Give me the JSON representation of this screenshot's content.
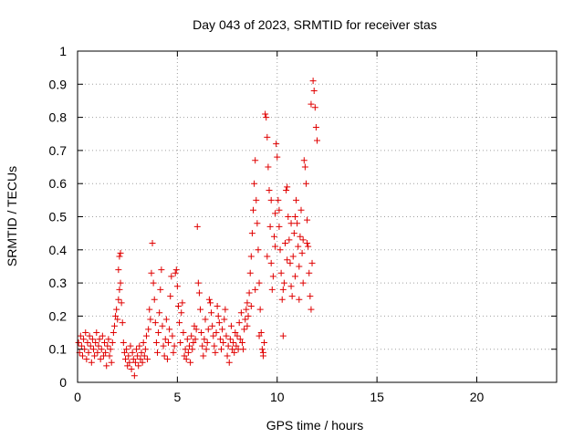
{
  "chart_data": {
    "type": "scatter",
    "title": "Day 043 of 2023, SRMTID for receiver stas",
    "xlabel": "GPS time / hours",
    "ylabel": "SRMTID / TECUs",
    "xlim": [
      0,
      24
    ],
    "ylim": [
      0,
      1
    ],
    "xticks": [
      0,
      5,
      10,
      15,
      20
    ],
    "xtick_labels": [
      "0",
      "5",
      "10",
      "15",
      "20"
    ],
    "yticks": [
      0,
      0.1,
      0.2,
      0.3,
      0.4,
      0.5,
      0.6,
      0.7,
      0.8,
      0.9,
      1
    ],
    "ytick_labels": [
      "0",
      "0.1",
      "0.2",
      "0.3",
      "0.4",
      "0.5",
      "0.6",
      "0.7",
      "0.8",
      "0.9",
      "1"
    ],
    "grid": true,
    "marker": "+",
    "series": [
      {
        "name": "stas",
        "color": "#e00000",
        "points": [
          [
            0.05,
            0.12
          ],
          [
            0.1,
            0.09
          ],
          [
            0.15,
            0.14
          ],
          [
            0.2,
            0.11
          ],
          [
            0.25,
            0.08
          ],
          [
            0.3,
            0.13
          ],
          [
            0.35,
            0.1
          ],
          [
            0.4,
            0.15
          ],
          [
            0.45,
            0.07
          ],
          [
            0.5,
            0.12
          ],
          [
            0.55,
            0.09
          ],
          [
            0.6,
            0.14
          ],
          [
            0.65,
            0.11
          ],
          [
            0.7,
            0.06
          ],
          [
            0.75,
            0.13
          ],
          [
            0.8,
            0.1
          ],
          [
            0.85,
            0.08
          ],
          [
            0.9,
            0.12
          ],
          [
            0.95,
            0.15
          ],
          [
            1.0,
            0.09
          ],
          [
            1.05,
            0.11
          ],
          [
            1.1,
            0.13
          ],
          [
            1.15,
            0.07
          ],
          [
            1.2,
            0.1
          ],
          [
            1.25,
            0.14
          ],
          [
            1.3,
            0.08
          ],
          [
            1.35,
            0.12
          ],
          [
            1.4,
            0.09
          ],
          [
            1.45,
            0.05
          ],
          [
            1.5,
            0.11
          ],
          [
            1.55,
            0.13
          ],
          [
            1.6,
            0.08
          ],
          [
            1.65,
            0.1
          ],
          [
            1.7,
            0.06
          ],
          [
            1.75,
            0.12
          ],
          [
            1.8,
            0.15
          ],
          [
            1.85,
            0.17
          ],
          [
            1.9,
            0.2
          ],
          [
            1.95,
            0.22
          ],
          [
            2.0,
            0.19
          ],
          [
            2.05,
            0.25
          ],
          [
            2.1,
            0.28
          ],
          [
            2.15,
            0.3
          ],
          [
            2.2,
            0.24
          ],
          [
            2.25,
            0.18
          ],
          [
            2.1,
            0.38
          ],
          [
            2.15,
            0.39
          ],
          [
            2.05,
            0.34
          ],
          [
            2.3,
            0.12
          ],
          [
            2.35,
            0.09
          ],
          [
            2.4,
            0.07
          ],
          [
            2.45,
            0.1
          ],
          [
            2.5,
            0.05
          ],
          [
            2.55,
            0.08
          ],
          [
            2.6,
            0.06
          ],
          [
            2.65,
            0.11
          ],
          [
            2.7,
            0.04
          ],
          [
            2.75,
            0.09
          ],
          [
            2.8,
            0.07
          ],
          [
            2.85,
            0.02
          ],
          [
            2.9,
            0.06
          ],
          [
            2.95,
            0.1
          ],
          [
            3.0,
            0.08
          ],
          [
            3.05,
            0.05
          ],
          [
            3.1,
            0.11
          ],
          [
            3.15,
            0.07
          ],
          [
            3.2,
            0.09
          ],
          [
            3.25,
            0.06
          ],
          [
            3.3,
            0.12
          ],
          [
            3.35,
            0.08
          ],
          [
            3.4,
            0.1
          ],
          [
            3.45,
            0.14
          ],
          [
            3.5,
            0.07
          ],
          [
            3.55,
            0.16
          ],
          [
            3.6,
            0.22
          ],
          [
            3.65,
            0.19
          ],
          [
            3.7,
            0.33
          ],
          [
            3.75,
            0.42
          ],
          [
            3.8,
            0.3
          ],
          [
            3.85,
            0.25
          ],
          [
            3.9,
            0.18
          ],
          [
            3.95,
            0.12
          ],
          [
            4.0,
            0.09
          ],
          [
            4.05,
            0.15
          ],
          [
            4.1,
            0.21
          ],
          [
            4.15,
            0.28
          ],
          [
            4.2,
            0.34
          ],
          [
            4.25,
            0.17
          ],
          [
            4.3,
            0.11
          ],
          [
            4.35,
            0.08
          ],
          [
            4.4,
            0.13
          ],
          [
            4.45,
            0.19
          ],
          [
            4.5,
            0.07
          ],
          [
            4.55,
            0.12
          ],
          [
            4.6,
            0.16
          ],
          [
            4.65,
            0.26
          ],
          [
            4.7,
            0.32
          ],
          [
            4.75,
            0.14
          ],
          [
            4.8,
            0.09
          ],
          [
            4.85,
            0.11
          ],
          [
            4.9,
            0.33
          ],
          [
            4.95,
            0.34
          ],
          [
            5.0,
            0.29
          ],
          [
            5.05,
            0.23
          ],
          [
            5.1,
            0.18
          ],
          [
            5.15,
            0.12
          ],
          [
            5.2,
            0.21
          ],
          [
            5.25,
            0.24
          ],
          [
            5.3,
            0.15
          ],
          [
            5.35,
            0.08
          ],
          [
            5.4,
            0.1
          ],
          [
            5.45,
            0.07
          ],
          [
            5.5,
            0.13
          ],
          [
            5.55,
            0.09
          ],
          [
            5.6,
            0.11
          ],
          [
            5.65,
            0.06
          ],
          [
            5.7,
            0.14
          ],
          [
            5.75,
            0.1
          ],
          [
            5.8,
            0.12
          ],
          [
            5.85,
            0.17
          ],
          [
            5.9,
            0.13
          ],
          [
            5.95,
            0.16
          ],
          [
            6.0,
            0.47
          ],
          [
            6.05,
            0.3
          ],
          [
            6.1,
            0.27
          ],
          [
            6.15,
            0.22
          ],
          [
            6.2,
            0.15
          ],
          [
            6.25,
            0.11
          ],
          [
            6.3,
            0.08
          ],
          [
            6.35,
            0.13
          ],
          [
            6.4,
            0.19
          ],
          [
            6.45,
            0.1
          ],
          [
            6.5,
            0.12
          ],
          [
            6.55,
            0.16
          ],
          [
            6.6,
            0.25
          ],
          [
            6.65,
            0.24
          ],
          [
            6.7,
            0.21
          ],
          [
            6.75,
            0.17
          ],
          [
            6.8,
            0.14
          ],
          [
            6.85,
            0.11
          ],
          [
            6.9,
            0.09
          ],
          [
            6.95,
            0.15
          ],
          [
            7.0,
            0.23
          ],
          [
            7.05,
            0.2
          ],
          [
            7.1,
            0.18
          ],
          [
            7.15,
            0.13
          ],
          [
            7.2,
            0.1
          ],
          [
            7.25,
            0.16
          ],
          [
            7.3,
            0.12
          ],
          [
            7.35,
            0.19
          ],
          [
            7.4,
            0.22
          ],
          [
            7.45,
            0.14
          ],
          [
            7.5,
            0.08
          ],
          [
            7.55,
            0.11
          ],
          [
            7.6,
            0.06
          ],
          [
            7.65,
            0.13
          ],
          [
            7.7,
            0.17
          ],
          [
            7.75,
            0.1
          ],
          [
            7.8,
            0.12
          ],
          [
            7.85,
            0.09
          ],
          [
            7.9,
            0.15
          ],
          [
            7.95,
            0.11
          ],
          [
            8.0,
            0.14
          ],
          [
            8.05,
            0.1
          ],
          [
            8.1,
            0.18
          ],
          [
            8.15,
            0.13
          ],
          [
            8.2,
            0.21
          ],
          [
            8.25,
            0.12
          ],
          [
            8.3,
            0.1
          ],
          [
            8.35,
            0.16
          ],
          [
            8.4,
            0.19
          ],
          [
            8.45,
            0.22
          ],
          [
            8.5,
            0.24
          ],
          [
            8.55,
            0.2
          ],
          [
            8.6,
            0.27
          ],
          [
            8.65,
            0.33
          ],
          [
            8.7,
            0.38
          ],
          [
            8.75,
            0.45
          ],
          [
            8.8,
            0.52
          ],
          [
            8.85,
            0.6
          ],
          [
            8.9,
            0.67
          ],
          [
            8.95,
            0.55
          ],
          [
            9.0,
            0.48
          ],
          [
            9.05,
            0.4
          ],
          [
            9.1,
            0.3
          ],
          [
            9.15,
            0.22
          ],
          [
            9.2,
            0.15
          ],
          [
            9.25,
            0.1
          ],
          [
            9.3,
            0.08
          ],
          [
            9.35,
            0.12
          ],
          [
            9.4,
            0.81
          ],
          [
            9.45,
            0.8
          ],
          [
            9.5,
            0.74
          ],
          [
            9.55,
            0.65
          ],
          [
            9.6,
            0.58
          ],
          [
            9.65,
            0.47
          ],
          [
            9.7,
            0.36
          ],
          [
            9.75,
            0.28
          ],
          [
            9.8,
            0.32
          ],
          [
            9.85,
            0.44
          ],
          [
            9.9,
            0.51
          ],
          [
            9.95,
            0.72
          ],
          [
            10.0,
            0.68
          ],
          [
            10.05,
            0.55
          ],
          [
            10.1,
            0.47
          ],
          [
            10.15,
            0.4
          ],
          [
            10.2,
            0.33
          ],
          [
            10.25,
            0.25
          ],
          [
            10.3,
            0.14
          ],
          [
            10.35,
            0.3
          ],
          [
            10.4,
            0.42
          ],
          [
            10.45,
            0.58
          ],
          [
            10.5,
            0.59
          ],
          [
            10.55,
            0.5
          ],
          [
            10.6,
            0.43
          ],
          [
            10.65,
            0.36
          ],
          [
            10.7,
            0.29
          ],
          [
            10.75,
            0.26
          ],
          [
            10.8,
            0.38
          ],
          [
            10.85,
            0.45
          ],
          [
            10.9,
            0.5
          ],
          [
            10.95,
            0.55
          ],
          [
            11.0,
            0.48
          ],
          [
            11.05,
            0.41
          ],
          [
            11.1,
            0.35
          ],
          [
            11.15,
            0.44
          ],
          [
            11.2,
            0.52
          ],
          [
            11.25,
            0.39
          ],
          [
            11.3,
            0.43
          ],
          [
            11.35,
            0.67
          ],
          [
            11.4,
            0.65
          ],
          [
            11.45,
            0.6
          ],
          [
            11.5,
            0.49
          ],
          [
            11.55,
            0.41
          ],
          [
            11.6,
            0.33
          ],
          [
            11.65,
            0.26
          ],
          [
            11.7,
            0.22
          ],
          [
            11.75,
            0.36
          ],
          [
            11.8,
            0.91
          ],
          [
            11.85,
            0.88
          ],
          [
            11.9,
            0.83
          ],
          [
            11.95,
            0.77
          ],
          [
            12.0,
            0.73
          ],
          [
            11.7,
            0.84
          ],
          [
            11.5,
            0.42
          ],
          [
            11.3,
            0.3
          ],
          [
            11.1,
            0.25
          ],
          [
            10.9,
            0.32
          ],
          [
            10.7,
            0.48
          ],
          [
            10.5,
            0.37
          ],
          [
            10.3,
            0.28
          ],
          [
            10.1,
            0.52
          ],
          [
            9.9,
            0.41
          ],
          [
            9.7,
            0.55
          ],
          [
            9.5,
            0.38
          ],
          [
            9.3,
            0.09
          ],
          [
            9.1,
            0.14
          ],
          [
            8.9,
            0.28
          ],
          [
            8.7,
            0.23
          ],
          [
            8.5,
            0.17
          ]
        ]
      }
    ]
  }
}
